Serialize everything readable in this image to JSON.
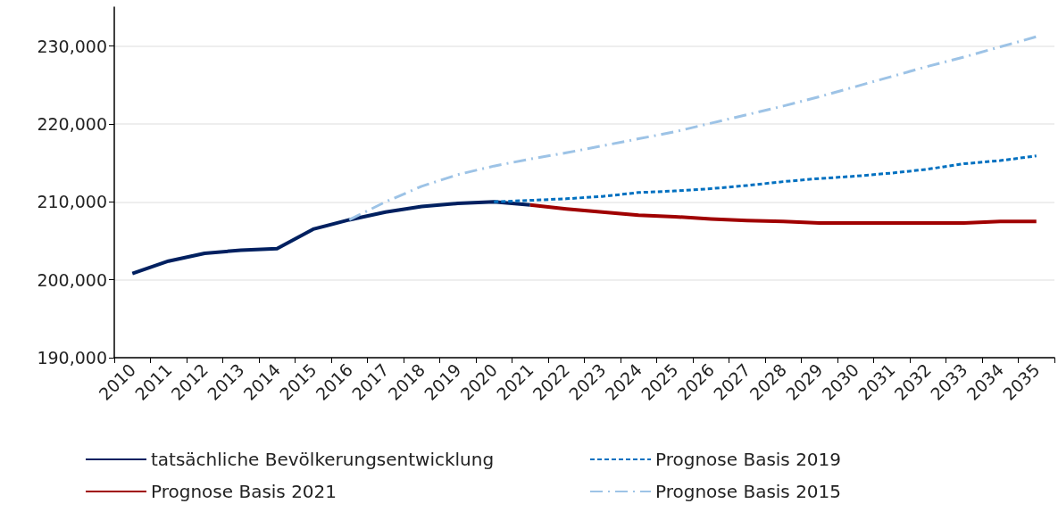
{
  "chart_data": {
    "type": "line",
    "categories": [
      "2010",
      "2011",
      "2012",
      "2013",
      "2014",
      "2015",
      "2016",
      "2017",
      "2018",
      "2019",
      "2020",
      "2021",
      "2022",
      "2023",
      "2024",
      "2025",
      "2026",
      "2027",
      "2028",
      "2029",
      "2030",
      "2031",
      "2032",
      "2033",
      "2034",
      "2035"
    ],
    "series": [
      {
        "name": "tatsächliche Bevölkerungsentwicklung",
        "color": "#002060",
        "line_style": "solid",
        "values": [
          200800,
          202400,
          203400,
          203800,
          204000,
          206500,
          207700,
          208700,
          209400,
          209800,
          210000,
          209600,
          null,
          null,
          null,
          null,
          null,
          null,
          null,
          null,
          null,
          null,
          null,
          null,
          null,
          null
        ]
      },
      {
        "name": "Prognose Basis 2021",
        "color": "#a00000",
        "line_style": "solid",
        "values": [
          null,
          null,
          null,
          null,
          null,
          null,
          null,
          null,
          null,
          null,
          null,
          209600,
          209100,
          208700,
          208300,
          208100,
          207800,
          207600,
          207500,
          207300,
          207300,
          207300,
          207300,
          207300,
          207500,
          207500
        ]
      },
      {
        "name": "Prognose Basis 2019",
        "color": "#0070c0",
        "line_style": "dashed",
        "values": [
          null,
          null,
          null,
          null,
          null,
          null,
          null,
          null,
          null,
          null,
          210000,
          210200,
          210400,
          210700,
          211200,
          211400,
          211700,
          212100,
          212600,
          213000,
          213300,
          213700,
          214200,
          214900,
          215300,
          215900
        ]
      },
      {
        "name": "Prognose Basis 2015",
        "color": "#9dc3e6",
        "line_style": "dashdot",
        "values": [
          null,
          null,
          null,
          null,
          null,
          null,
          207700,
          210000,
          212000,
          213500,
          214600,
          215500,
          216300,
          217200,
          218100,
          219000,
          220100,
          221200,
          222300,
          223500,
          224800,
          226100,
          227400,
          228600,
          229900,
          231200
        ]
      }
    ],
    "ylim": [
      190000,
      235000
    ],
    "yticks": [
      {
        "value": 190000,
        "label": "190,000"
      },
      {
        "value": 200000,
        "label": "200,000"
      },
      {
        "value": 210000,
        "label": "210,000"
      },
      {
        "value": 220000,
        "label": "220,000"
      },
      {
        "value": 230000,
        "label": "230,000"
      }
    ],
    "grid": "y",
    "legend": "bottom",
    "marker": "none"
  }
}
